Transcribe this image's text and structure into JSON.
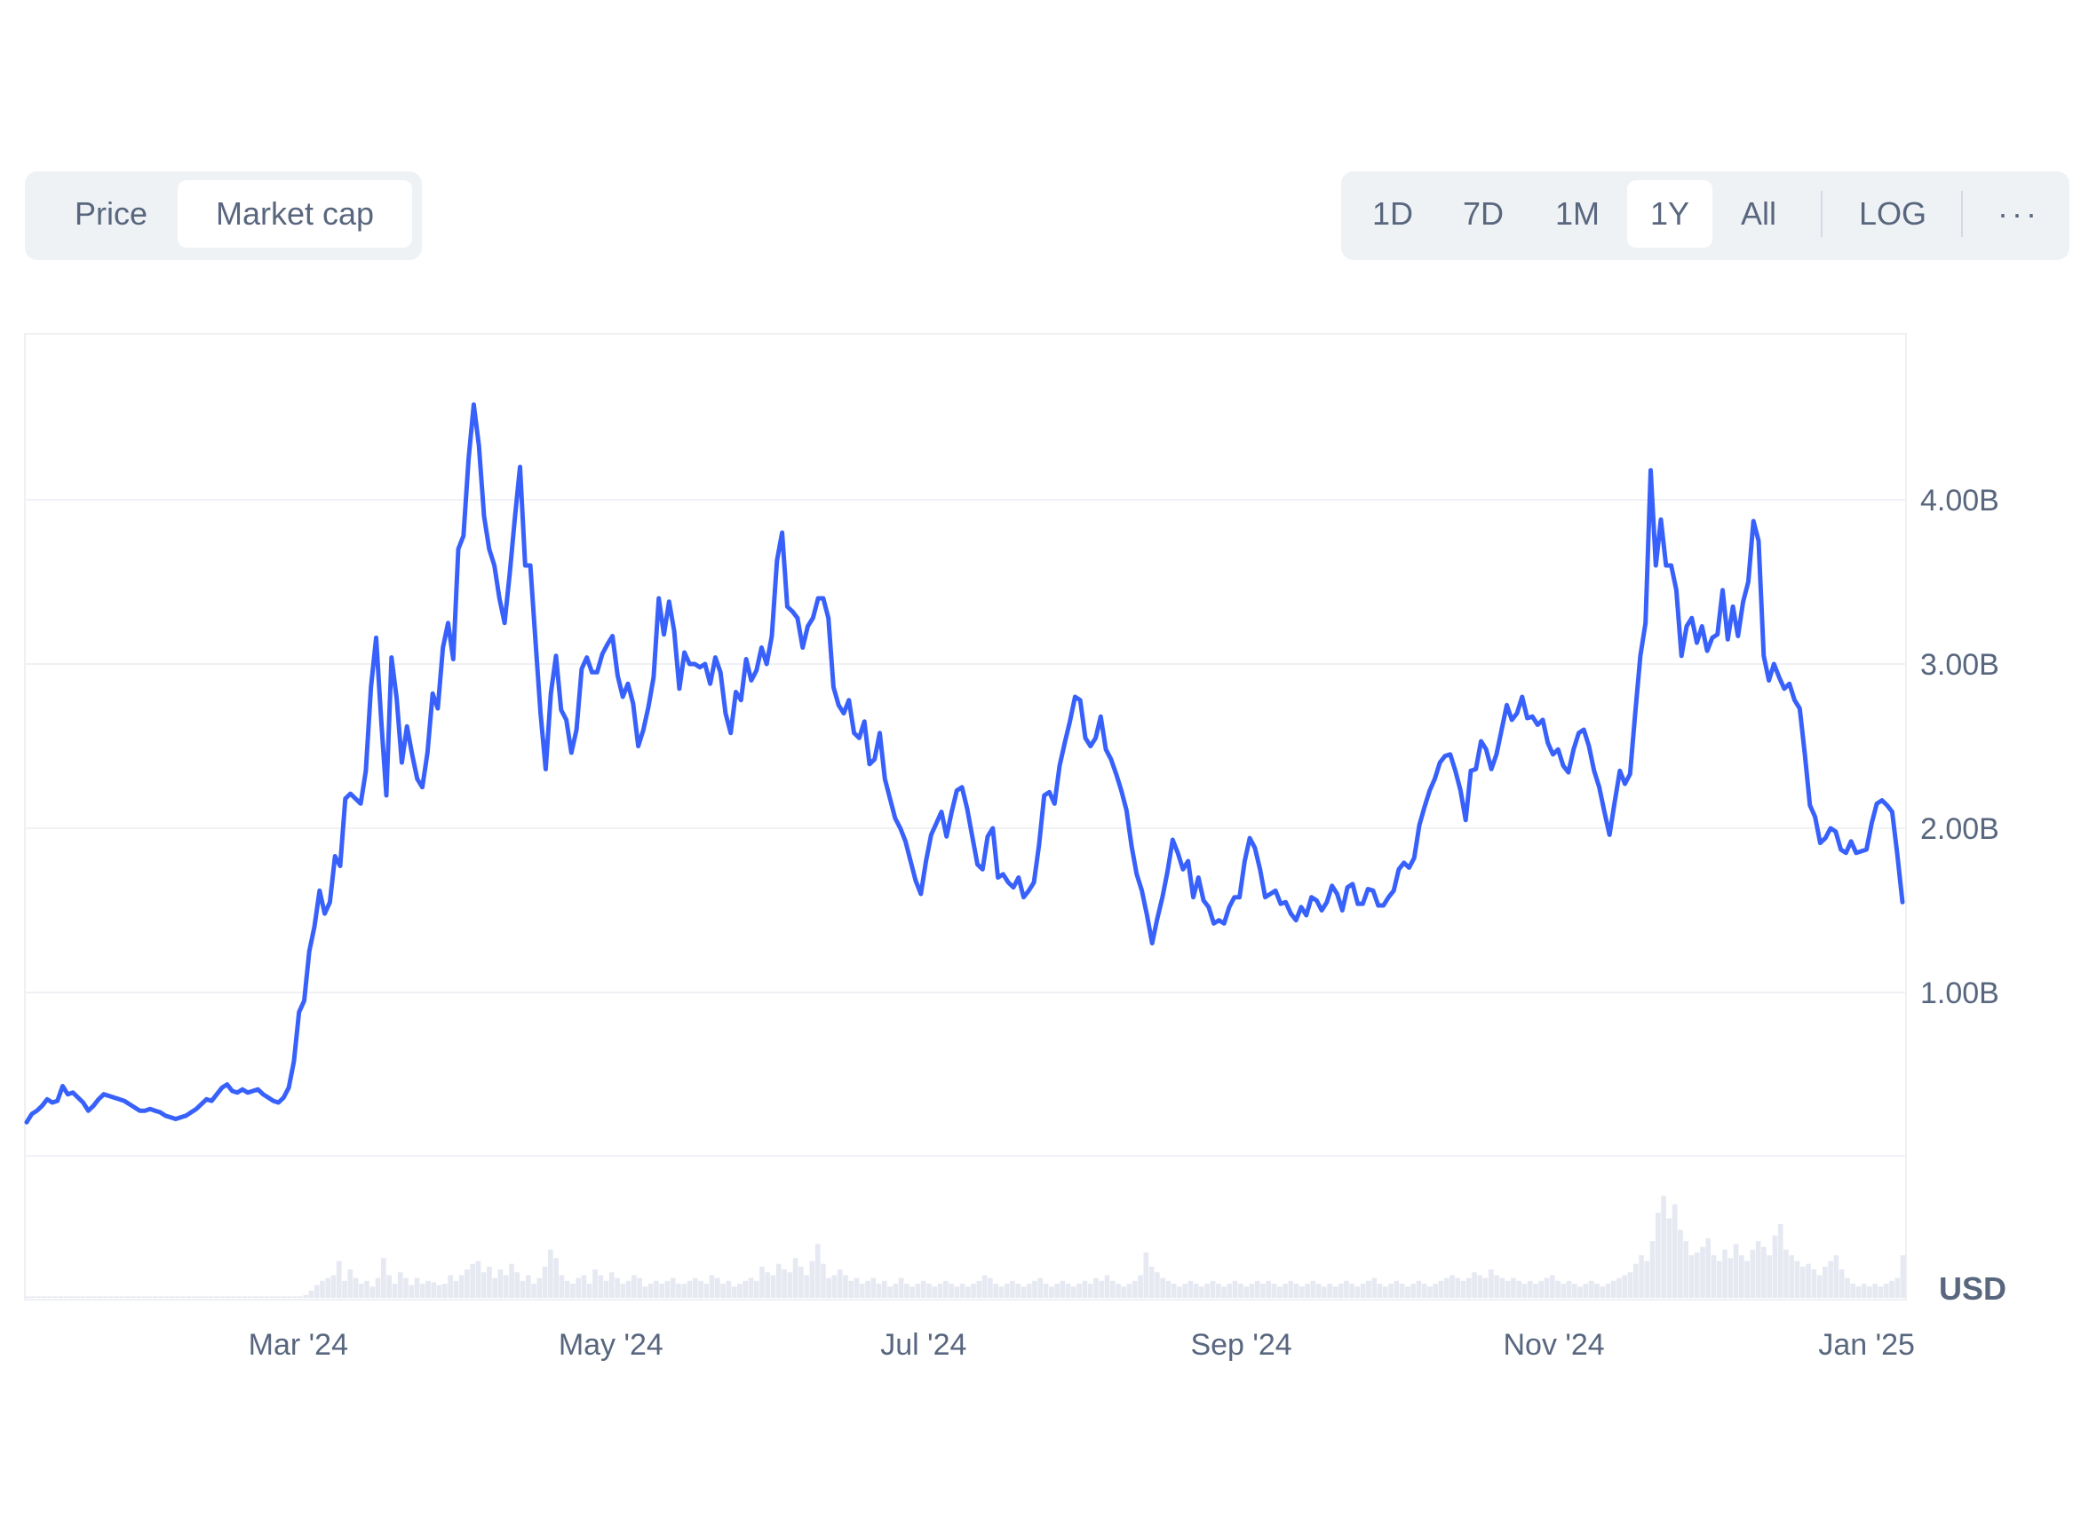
{
  "toggle": {
    "price_label": "Price",
    "market_cap_label": "Market cap",
    "active": "Market cap"
  },
  "ranges": {
    "items": [
      "1D",
      "7D",
      "1M",
      "1Y",
      "All"
    ],
    "active": "1Y",
    "log_label": "LOG",
    "more_label": "···"
  },
  "chart_data": {
    "type": "line",
    "y_ticks": [
      "1.00B",
      "2.00B",
      "3.00B",
      "4.00B"
    ],
    "x_ticks": [
      "Mar '24",
      "May '24",
      "Jul '24",
      "Sep '24",
      "Nov '24",
      "Jan '25"
    ],
    "currency_label": "USD",
    "line_color": "#3861fb",
    "volume_color": "#e6e9f2",
    "x_start": "2024-01-08",
    "x_end": "2025-01-08",
    "ylim": [
      0.0,
      4.85
    ],
    "series": [
      {
        "values": [
          0.21,
          0.26,
          0.28,
          0.31,
          0.35,
          0.33,
          0.34,
          0.43,
          0.38,
          0.39,
          0.36,
          0.33,
          0.28,
          0.31,
          0.35,
          0.38,
          0.37,
          0.36,
          0.35,
          0.34,
          0.32,
          0.3,
          0.28,
          0.28,
          0.29,
          0.28,
          0.27,
          0.25,
          0.24,
          0.23,
          0.24,
          0.25,
          0.27,
          0.29,
          0.32,
          0.35,
          0.34,
          0.38,
          0.42,
          0.44,
          0.4,
          0.39,
          0.41,
          0.39,
          0.4,
          0.41,
          0.38,
          0.36,
          0.34,
          0.33,
          0.36,
          0.42,
          0.58,
          0.88,
          0.95,
          1.25,
          1.4,
          1.62,
          1.48,
          1.55,
          1.83,
          1.77,
          2.18,
          2.21,
          2.18,
          2.15,
          2.35,
          2.86,
          3.16,
          2.65,
          2.2,
          3.04,
          2.79,
          2.4,
          2.62,
          2.45,
          2.3,
          2.25,
          2.46,
          2.82,
          2.73,
          3.1,
          3.25,
          3.03,
          3.7,
          3.78,
          4.25,
          4.58,
          4.33,
          3.9,
          3.7,
          3.6,
          3.4,
          3.25,
          3.55,
          3.89,
          4.2,
          3.6,
          3.6,
          3.15,
          2.7,
          2.36,
          2.82,
          3.05,
          2.72,
          2.66,
          2.46,
          2.6,
          2.97,
          3.04,
          2.95,
          2.95,
          3.06,
          3.12,
          3.17,
          2.93,
          2.8,
          2.88,
          2.76,
          2.5,
          2.6,
          2.74,
          2.92,
          3.4,
          3.18,
          3.38,
          3.2,
          2.85,
          3.07,
          3.0,
          3.0,
          2.98,
          3.0,
          2.88,
          3.04,
          2.95,
          2.7,
          2.58,
          2.83,
          2.78,
          3.03,
          2.9,
          2.96,
          3.1,
          3.0,
          3.17,
          3.63,
          3.8,
          3.35,
          3.32,
          3.28,
          3.1,
          3.23,
          3.28,
          3.4,
          3.4,
          3.28,
          2.86,
          2.75,
          2.7,
          2.78,
          2.58,
          2.55,
          2.65,
          2.39,
          2.42,
          2.58,
          2.3,
          2.18,
          2.06,
          2.0,
          1.92,
          1.8,
          1.68,
          1.6,
          1.8,
          1.96,
          2.03,
          2.1,
          1.95,
          2.1,
          2.23,
          2.25,
          2.12,
          1.95,
          1.78,
          1.75,
          1.95,
          2.0,
          1.7,
          1.72,
          1.67,
          1.64,
          1.7,
          1.58,
          1.62,
          1.67,
          1.9,
          2.2,
          2.22,
          2.15,
          2.38,
          2.52,
          2.65,
          2.8,
          2.78,
          2.55,
          2.5,
          2.55,
          2.68,
          2.48,
          2.42,
          2.33,
          2.23,
          2.11,
          1.89,
          1.72,
          1.62,
          1.47,
          1.3,
          1.45,
          1.58,
          1.74,
          1.93,
          1.85,
          1.75,
          1.8,
          1.58,
          1.7,
          1.56,
          1.52,
          1.42,
          1.44,
          1.42,
          1.52,
          1.58,
          1.58,
          1.8,
          1.94,
          1.88,
          1.75,
          1.58,
          1.6,
          1.62,
          1.54,
          1.55,
          1.48,
          1.44,
          1.52,
          1.47,
          1.58,
          1.56,
          1.5,
          1.55,
          1.65,
          1.6,
          1.5,
          1.64,
          1.66,
          1.54,
          1.54,
          1.63,
          1.62,
          1.53,
          1.53,
          1.58,
          1.62,
          1.75,
          1.79,
          1.76,
          1.82,
          2.02,
          2.13,
          2.23,
          2.3,
          2.4,
          2.44,
          2.45,
          2.35,
          2.23,
          2.05,
          2.35,
          2.36,
          2.53,
          2.48,
          2.36,
          2.45,
          2.6,
          2.75,
          2.66,
          2.7,
          2.8,
          2.67,
          2.68,
          2.63,
          2.66,
          2.52,
          2.45,
          2.48,
          2.38,
          2.34,
          2.48,
          2.58,
          2.6,
          2.5,
          2.35,
          2.25,
          2.1,
          1.96,
          2.16,
          2.35,
          2.27,
          2.33,
          2.7,
          3.05,
          3.25,
          4.18,
          3.6,
          3.88,
          3.6,
          3.6,
          3.45,
          3.05,
          3.23,
          3.28,
          3.13,
          3.23,
          3.08,
          3.16,
          3.18,
          3.45,
          3.15,
          3.35,
          3.17,
          3.38,
          3.5,
          3.87,
          3.75,
          3.05,
          2.9,
          3.0,
          2.92,
          2.85,
          2.88,
          2.78,
          2.73,
          2.45,
          2.14,
          2.07,
          1.91,
          1.94,
          2.0,
          1.98,
          1.87,
          1.85,
          1.92,
          1.85,
          1.86,
          1.87,
          2.03,
          2.15,
          2.17,
          2.14,
          2.1,
          1.84,
          1.55
        ]
      }
    ],
    "volume": [
      1,
      1,
      1,
      1,
      1,
      1,
      1,
      1,
      1,
      1,
      1,
      1,
      1,
      1,
      1,
      1,
      1,
      1,
      1,
      1,
      1,
      1,
      1,
      1,
      1,
      1,
      1,
      1,
      1,
      1,
      1,
      1,
      1,
      1,
      1,
      1,
      1,
      1,
      1,
      1,
      1,
      1,
      1,
      1,
      1,
      1,
      1,
      1,
      1,
      1,
      2,
      5,
      9,
      12,
      14,
      16,
      26,
      12,
      20,
      14,
      10,
      12,
      8,
      14,
      28,
      16,
      10,
      18,
      14,
      9,
      14,
      10,
      12,
      11,
      9,
      10,
      16,
      12,
      16,
      20,
      24,
      26,
      18,
      22,
      14,
      20,
      16,
      24,
      18,
      12,
      16,
      10,
      14,
      22,
      34,
      28,
      16,
      12,
      10,
      14,
      16,
      10,
      20,
      16,
      12,
      18,
      14,
      10,
      12,
      16,
      14,
      8,
      10,
      12,
      10,
      12,
      14,
      10,
      10,
      12,
      14,
      12,
      10,
      16,
      14,
      10,
      12,
      8,
      10,
      12,
      14,
      12,
      22,
      18,
      16,
      24,
      20,
      18,
      28,
      22,
      16,
      26,
      38,
      24,
      14,
      16,
      20,
      16,
      12,
      14,
      10,
      12,
      14,
      10,
      12,
      8,
      10,
      14,
      10,
      8,
      10,
      12,
      10,
      8,
      10,
      12,
      10,
      8,
      10,
      8,
      10,
      12,
      16,
      14,
      10,
      8,
      10,
      12,
      10,
      8,
      10,
      12,
      14,
      10,
      8,
      10,
      12,
      10,
      8,
      10,
      12,
      10,
      14,
      12,
      16,
      12,
      10,
      8,
      10,
      12,
      16,
      32,
      22,
      18,
      14,
      12,
      10,
      8,
      10,
      12,
      10,
      8,
      10,
      12,
      10,
      8,
      10,
      12,
      10,
      8,
      10,
      12,
      10,
      12,
      10,
      8,
      10,
      12,
      10,
      8,
      10,
      12,
      10,
      8,
      10,
      8,
      10,
      12,
      10,
      8,
      10,
      12,
      14,
      10,
      8,
      10,
      12,
      10,
      8,
      10,
      12,
      10,
      8,
      10,
      12,
      14,
      16,
      14,
      12,
      14,
      18,
      16,
      14,
      20,
      16,
      14,
      12,
      14,
      12,
      10,
      12,
      10,
      12,
      14,
      16,
      12,
      10,
      12,
      10,
      8,
      10,
      12,
      10,
      8,
      10,
      12,
      14,
      16,
      18,
      24,
      30,
      26,
      40,
      60,
      72,
      56,
      66,
      48,
      40,
      30,
      32,
      36,
      42,
      30,
      26,
      34,
      28,
      38,
      30,
      26,
      34,
      40,
      36,
      30,
      44,
      52,
      34,
      30,
      26,
      22,
      24,
      20,
      16,
      22,
      26,
      30,
      20,
      14,
      10,
      8,
      10,
      8,
      10,
      8,
      10,
      12,
      14,
      30
    ]
  }
}
